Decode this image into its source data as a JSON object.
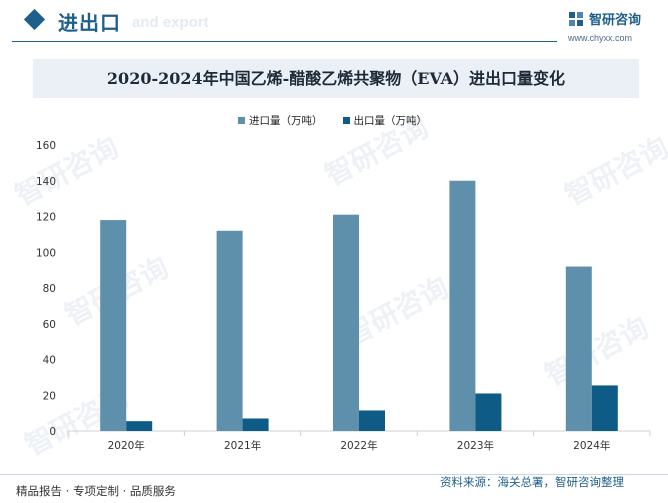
{
  "header": {
    "section_title": "进出口",
    "section_subtitle": "and export",
    "brand_name": "智研咨询",
    "brand_url": "www.chyxx.com"
  },
  "watermark_text": "智研咨询",
  "colors": {
    "import": "#5f90ab",
    "export": "#0e5c86",
    "accent": "#1f5f8b",
    "title_bg": "#eaf0f6"
  },
  "chart_data": {
    "type": "bar",
    "title": "2020-2024年中国乙烯-醋酸乙烯共聚物（EVA）进出口量变化",
    "categories": [
      "2020年",
      "2021年",
      "2022年",
      "2023年",
      "2024年"
    ],
    "series": [
      {
        "name": "进口量（万吨）",
        "values": [
          118,
          112,
          121,
          140,
          92
        ]
      },
      {
        "name": "出口量（万吨）",
        "values": [
          5.5,
          7,
          11.5,
          21,
          25.5
        ]
      }
    ],
    "ylim": [
      0,
      160
    ],
    "yticks": [
      0,
      20,
      40,
      60,
      80,
      100,
      120,
      140,
      160
    ],
    "grid": false,
    "legend": "top-center"
  },
  "footer": {
    "left": "精品报告 · 专项定制 · 品质服务",
    "right": "资料来源：海关总署，智研咨询整理"
  }
}
